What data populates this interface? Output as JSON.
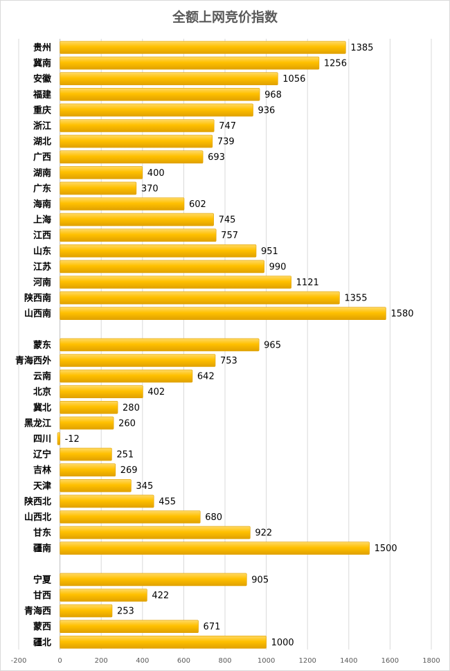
{
  "chart_data": {
    "type": "bar",
    "orientation": "horizontal",
    "title": "全额上网竞价指数",
    "xlabel": "",
    "ylabel": "",
    "xlim": [
      -200,
      1800
    ],
    "ticks": [
      -200,
      0,
      200,
      400,
      600,
      800,
      1000,
      1200,
      1400,
      1600,
      1800
    ],
    "tick_labels": [
      "-200",
      "0",
      "200",
      "400",
      "600",
      "800",
      "1000",
      "1200",
      "1400",
      "1600",
      "1800"
    ],
    "grid": true,
    "bar_color": "#FFC000",
    "bar_color_light": "#FFD966",
    "bar_color_dark": "#E0A100",
    "groups": [
      {
        "categories": [
          "贵州",
          "冀南",
          "安徽",
          "福建",
          "重庆",
          "浙江",
          "湖北",
          "广西",
          "湖南",
          "广东",
          "海南",
          "上海",
          "江西",
          "山东",
          "江苏",
          "河南",
          "陕西南",
          "山西南"
        ],
        "values": [
          1385,
          1256,
          1056,
          968,
          936,
          747,
          739,
          693,
          400,
          370,
          602,
          745,
          757,
          951,
          990,
          1121,
          1355,
          1580
        ]
      },
      {
        "categories": [
          "蒙东",
          "青海西外",
          "云南",
          "北京",
          "冀北",
          "黑龙江",
          "四川",
          "辽宁",
          "吉林",
          "天津",
          "陕西北",
          "山西北",
          "甘东",
          "疆南"
        ],
        "values": [
          965,
          753,
          642,
          402,
          280,
          260,
          -12,
          251,
          269,
          345,
          455,
          680,
          922,
          1500
        ]
      },
      {
        "categories": [
          "宁夏",
          "甘西",
          "青海西",
          "蒙西",
          "疆北"
        ],
        "values": [
          905,
          422,
          253,
          671,
          1000
        ]
      }
    ]
  }
}
